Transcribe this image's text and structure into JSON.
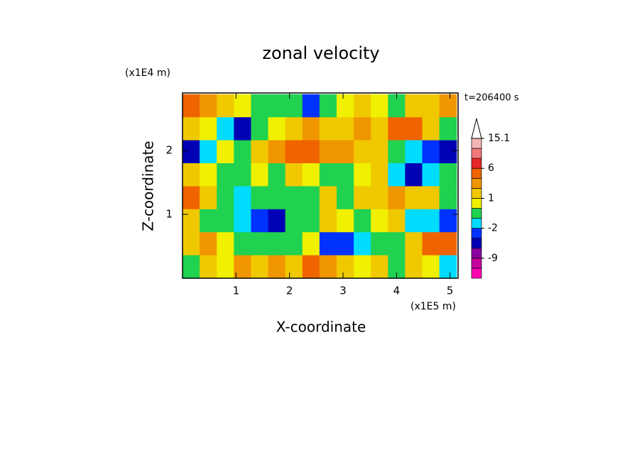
{
  "chart_data": {
    "type": "contour",
    "title": "zonal velocity",
    "x_label": "X-coordinate",
    "y_label": "Z-coordinate",
    "x_unit": "(x1E5 m)",
    "y_unit": "(x1E4 m)",
    "time_label": "t=206400 s",
    "xlim": [
      0,
      5.15
    ],
    "ylim": [
      0,
      2.9
    ],
    "xticks": [
      1,
      2,
      3,
      4,
      5
    ],
    "yticks": [
      1,
      2
    ],
    "x": [
      0.16,
      0.48,
      0.8,
      1.12,
      1.44,
      1.76,
      2.08,
      2.4,
      2.72,
      3.04,
      3.36,
      3.68,
      4.0,
      4.32,
      4.64,
      4.96
    ],
    "z": [
      2.7,
      2.34,
      1.98,
      1.62,
      1.26,
      0.9,
      0.54,
      0.18
    ],
    "values": [
      [
        4,
        3,
        1.5,
        0.5,
        -0.5,
        -0.5,
        -0.5,
        -3,
        -0.5,
        0.5,
        1.5,
        0.5,
        -0.5,
        1.5,
        1,
        3
      ],
      [
        1.5,
        0.5,
        -1.5,
        -4,
        -0.5,
        0.5,
        1.5,
        2,
        1,
        1.5,
        3,
        1.5,
        5,
        4,
        1,
        -0.5
      ],
      [
        -6,
        -2,
        0.5,
        -0.5,
        1.5,
        3,
        4,
        5,
        2,
        3,
        1.5,
        1,
        -0.5,
        -1.5,
        -2.5,
        -6
      ],
      [
        1.5,
        0.5,
        -0.5,
        -0.5,
        0.5,
        -0.5,
        1.5,
        0.5,
        -0.5,
        -0.5,
        0.5,
        1,
        -1.5,
        -6,
        -2,
        -0.5
      ],
      [
        4,
        1.5,
        -0.5,
        -1.5,
        -0.5,
        -0.5,
        -1,
        -0.5,
        1.5,
        -0.5,
        1.5,
        1,
        3,
        1.5,
        1,
        -0.5
      ],
      [
        1.5,
        -0.5,
        -0.5,
        -1.5,
        -2.5,
        -4,
        -0.5,
        -0.5,
        1.5,
        0.5,
        -0.5,
        0.5,
        1.5,
        -1.5,
        -1.5,
        -2.5
      ],
      [
        1.5,
        3,
        0.5,
        -0.5,
        -0.5,
        -0.5,
        -0.5,
        0.5,
        -3,
        -2.5,
        -1.5,
        -0.5,
        -0.5,
        1.5,
        4,
        5
      ],
      [
        -0.5,
        1.5,
        0.5,
        3,
        1.5,
        2,
        1.5,
        4,
        3,
        1.5,
        0.5,
        1,
        -0.5,
        1.5,
        0.5,
        -2
      ]
    ],
    "colorbar": {
      "bounds": [
        -15,
        -12,
        -9,
        -6,
        -3,
        -2,
        -1,
        0,
        1,
        2,
        4,
        6,
        9,
        12,
        15.1
      ],
      "colors": [
        "#ff00b4",
        "#c8009c",
        "#8c00a0",
        "#0000b4",
        "#0032ff",
        "#00dcff",
        "#20d250",
        "#f0f000",
        "#f0c800",
        "#f09600",
        "#f06400",
        "#e62828",
        "#f07878",
        "#f5b4b4"
      ],
      "over_color": "#ffffff",
      "ticks": [
        15.1,
        6,
        1,
        -2,
        -9
      ]
    }
  }
}
